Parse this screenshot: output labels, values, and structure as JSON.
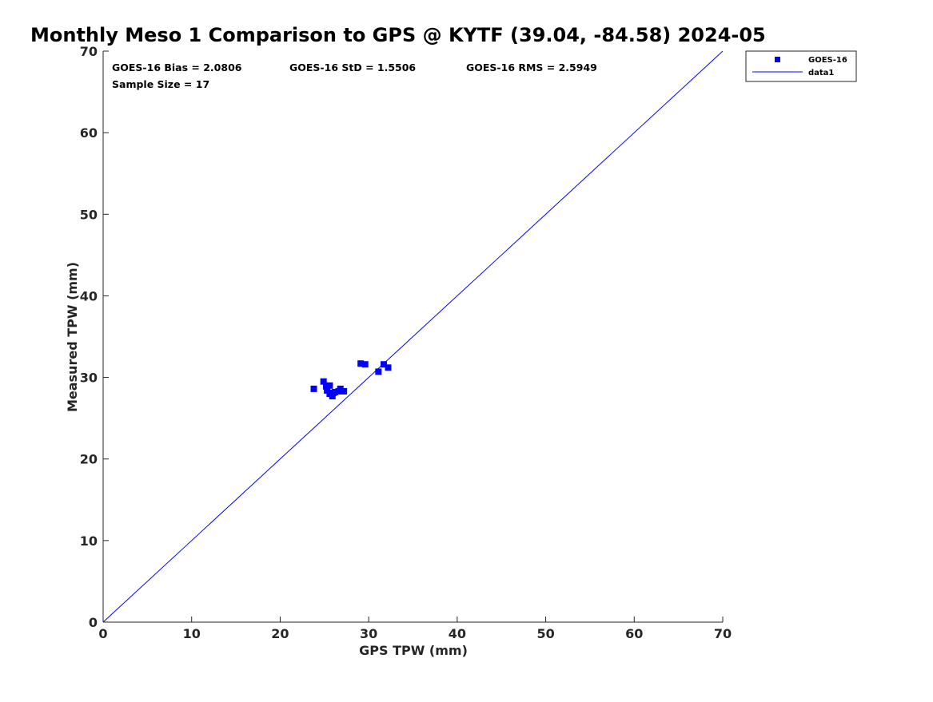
{
  "chart_data": {
    "type": "scatter",
    "title": "Monthly Meso 1 Comparison to GPS @ KYTF (39.04, -84.58) 2024-05",
    "xlabel": "GPS TPW (mm)",
    "ylabel": "Measured TPW (mm)",
    "xlim": [
      0,
      70
    ],
    "ylim": [
      0,
      70
    ],
    "xticks": [
      0,
      10,
      20,
      30,
      40,
      50,
      60,
      70
    ],
    "yticks": [
      0,
      10,
      20,
      30,
      40,
      50,
      60,
      70
    ],
    "grid": false,
    "legend_position": "top-right",
    "stats": [
      {
        "text": "GOES-16 Bias = 2.0806"
      },
      {
        "text": "GOES-16 StD = 1.5506"
      },
      {
        "text": "GOES-16 RMS = 2.5949"
      },
      {
        "text": "Sample Size = 17"
      }
    ],
    "series": [
      {
        "name": "GOES-16",
        "kind": "scatter",
        "marker": "square",
        "color": "#0000ff",
        "points": [
          [
            23.8,
            28.6
          ],
          [
            24.9,
            29.5
          ],
          [
            25.2,
            28.9
          ],
          [
            25.3,
            28.4
          ],
          [
            25.6,
            29.0
          ],
          [
            25.6,
            28.0
          ],
          [
            25.9,
            27.7
          ],
          [
            26.2,
            28.2
          ],
          [
            26.6,
            28.3
          ],
          [
            26.8,
            28.6
          ],
          [
            27.2,
            28.3
          ],
          [
            29.1,
            31.7
          ],
          [
            29.6,
            31.6
          ],
          [
            31.1,
            30.7
          ],
          [
            31.7,
            31.6
          ],
          [
            32.2,
            31.2
          ],
          [
            26.0,
            28.1
          ]
        ]
      },
      {
        "name": "data1",
        "kind": "line",
        "color": "#0000ff",
        "points": [
          [
            0,
            0
          ],
          [
            70,
            70
          ]
        ]
      }
    ]
  }
}
